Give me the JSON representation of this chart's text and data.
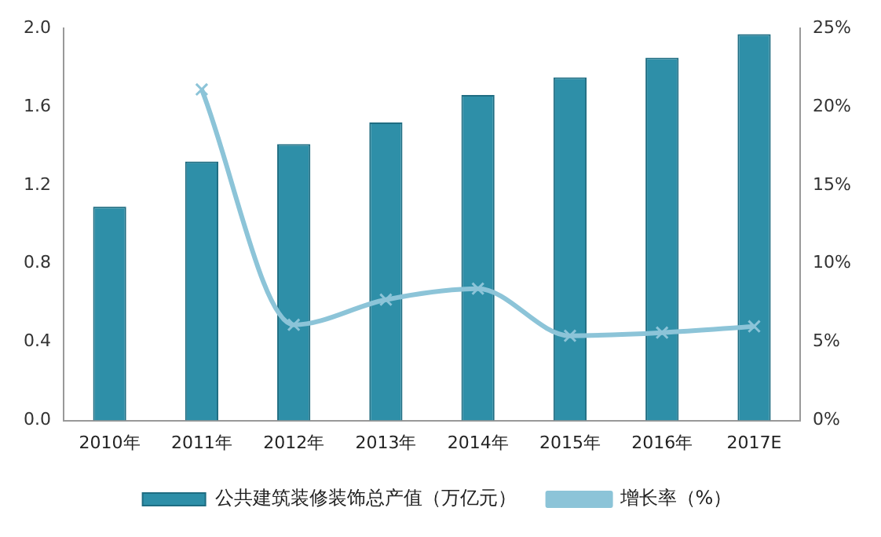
{
  "chart_data": {
    "type": "bar",
    "categories": [
      "2010年",
      "2011年",
      "2012年",
      "2013年",
      "2014年",
      "2015年",
      "2016年",
      "2017E"
    ],
    "series": [
      {
        "name": "公共建筑装修装饰总产值（万亿元）",
        "color": "#2e8fa8",
        "values": [
          1.09,
          1.32,
          1.41,
          1.52,
          1.66,
          1.75,
          1.85,
          1.97
        ]
      },
      {
        "name": "增长率（%）",
        "type": "line",
        "axis": "y2",
        "color": "#8cc4d8",
        "marker": "cross",
        "values": [
          null,
          21.1,
          6.1,
          7.7,
          8.4,
          5.4,
          5.6,
          6.0
        ]
      }
    ],
    "ylim": [
      0,
      2.0
    ],
    "yticks": [
      {
        "value": 0,
        "label": "0.0"
      },
      {
        "value": 0.4,
        "label": "0.4"
      },
      {
        "value": 0.8,
        "label": "0.8"
      },
      {
        "value": 1.2,
        "label": "1.2"
      },
      {
        "value": 1.6,
        "label": "1.6"
      },
      {
        "value": 2.0,
        "label": "2.0"
      }
    ],
    "y2lim": [
      0,
      25
    ],
    "y2ticks": [
      {
        "value": 0,
        "label": "0%"
      },
      {
        "value": 5,
        "label": "5%"
      },
      {
        "value": 10,
        "label": "10%"
      },
      {
        "value": 15,
        "label": "15%"
      },
      {
        "value": 20,
        "label": "20%"
      },
      {
        "value": 25,
        "label": "25%"
      }
    ],
    "grid": false,
    "legend": "bottom"
  }
}
